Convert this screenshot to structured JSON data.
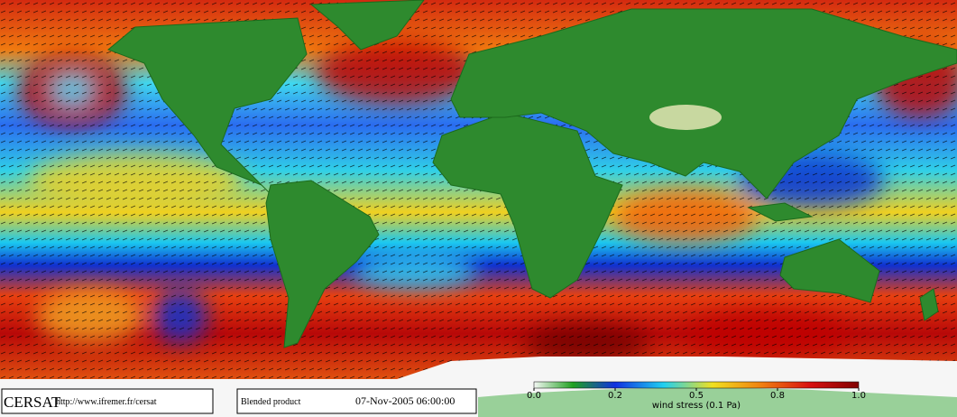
{
  "footer": {
    "logo": "CERSAT",
    "url": "http://www.ifremer.fr/cersat",
    "product": "Blended product",
    "datetime": "07-Nov-2005 06:00:00"
  },
  "colorbar": {
    "label": "wind stress (0.1 Pa)",
    "lim": [
      0,
      1
    ],
    "ticks": [
      {
        "value": 0,
        "label": "0.0"
      },
      0.2,
      0.5,
      0.8,
      {
        "value": 1,
        "label": "1.0"
      }
    ]
  }
}
